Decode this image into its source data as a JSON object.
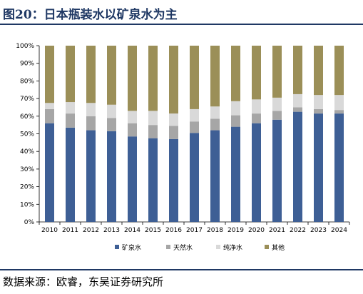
{
  "header": {
    "title": "图20：日本瓶装水以矿泉水为主"
  },
  "footer": {
    "source": "数据来源：欧睿，东吴证券研究所"
  },
  "colors": {
    "title": "#1f3864",
    "rule": "#1f3864"
  },
  "chart_data": {
    "type": "bar",
    "stacked": true,
    "categories": [
      "2010",
      "2011",
      "2012",
      "2013",
      "2014",
      "2015",
      "2016",
      "2017",
      "2018",
      "2019",
      "2020",
      "2021",
      "2022",
      "2023",
      "2024"
    ],
    "series": [
      {
        "name": "矿泉水",
        "color": "#3e5f95",
        "values": [
          56,
          53.5,
          52,
          51.5,
          48.5,
          47.5,
          47,
          50.5,
          52,
          54,
          56,
          58,
          62.5,
          61.5,
          61.5
        ]
      },
      {
        "name": "天然水",
        "color": "#a6a6a6",
        "values": [
          8,
          8,
          8,
          7.5,
          7.5,
          7.5,
          7.5,
          6.5,
          6.5,
          6.5,
          5.5,
          5,
          2.5,
          2.5,
          2
        ]
      },
      {
        "name": "纯净水",
        "color": "#d9d9d9",
        "values": [
          3.5,
          6.5,
          7.5,
          7.5,
          7,
          8,
          7,
          7,
          7,
          8,
          8,
          7.5,
          7.5,
          8,
          8.5
        ]
      },
      {
        "name": "其他",
        "color": "#9b8f58",
        "values": [
          32.5,
          32,
          32.5,
          33.5,
          37,
          37,
          38.5,
          36,
          34.5,
          31.5,
          30.5,
          29.5,
          27.5,
          28,
          28
        ]
      }
    ],
    "y_ticks": [
      "0%",
      "10%",
      "20%",
      "30%",
      "40%",
      "50%",
      "60%",
      "70%",
      "80%",
      "90%",
      "100%"
    ],
    "ylim": [
      0,
      100
    ],
    "legend_position": "bottom",
    "grid": false
  }
}
